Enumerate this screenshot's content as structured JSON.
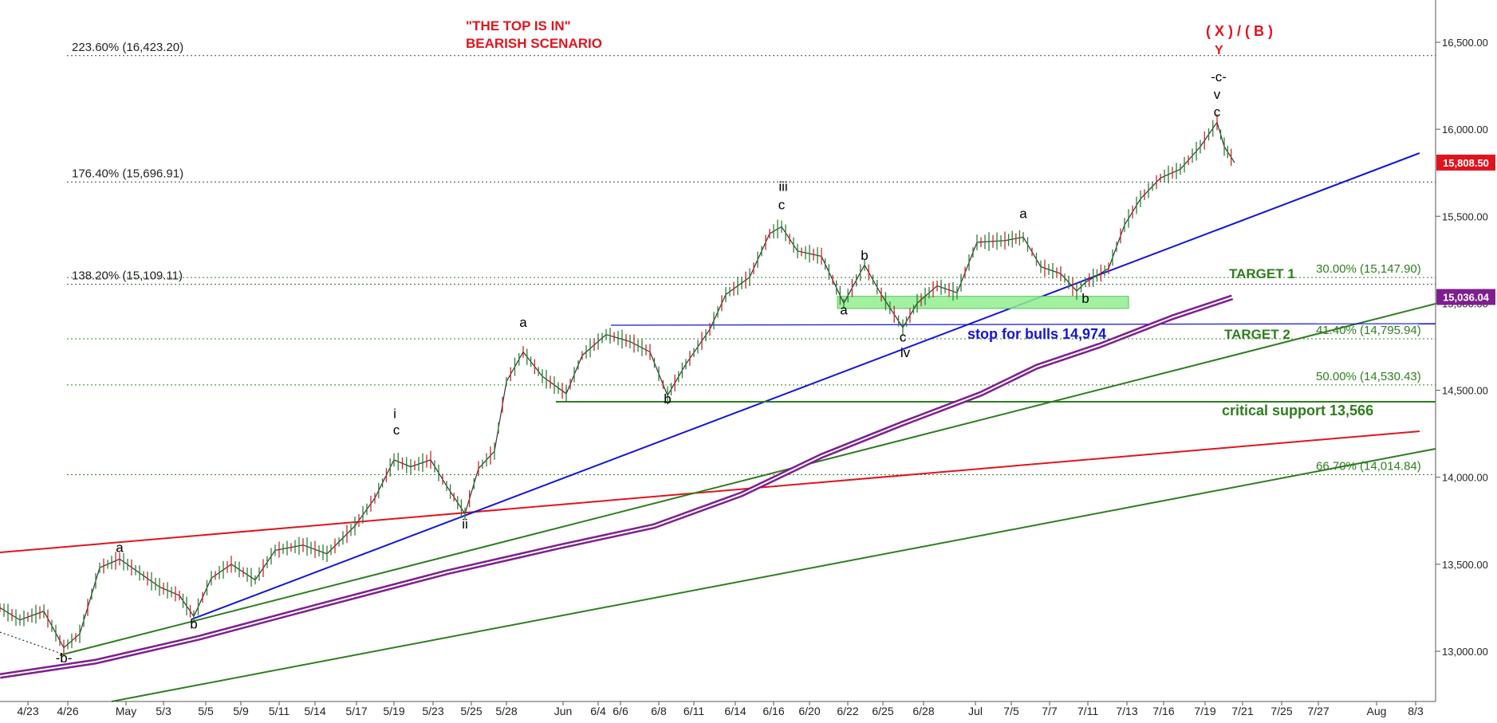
{
  "chart_data": {
    "type": "candlestick",
    "title_lines": [
      "\"THE TOP IS IN\"",
      "BEARISH SCENARIO"
    ],
    "ylim": [
      12750,
      16750
    ],
    "y_ticks": [
      13000,
      13500,
      14000,
      14500,
      15000,
      15500,
      16000,
      16500
    ],
    "y_tick_labels": [
      "13,000.00",
      "13,500.00",
      "14,000.00",
      "14,500.00",
      "15,000.00",
      "15,500.00",
      "16,000.00",
      "16,500.00"
    ],
    "x_tick_labels": [
      "4/23",
      "4/26",
      "May",
      "5/3",
      "5/5",
      "5/9",
      "5/11",
      "5/14",
      "5/17",
      "5/19",
      "5/23",
      "5/25",
      "5/28",
      "Jun",
      "6/4",
      "6/6",
      "6/8",
      "6/11",
      "6/14",
      "6/16",
      "6/20",
      "6/22",
      "6/25",
      "6/28",
      "Jul",
      "7/5",
      "7/7",
      "7/11",
      "7/13",
      "7/16",
      "7/19",
      "7/21",
      "7/25",
      "7/27",
      "Aug",
      "8/3"
    ],
    "x_tick_positions": [
      35,
      85,
      158,
      205,
      258,
      302,
      350,
      395,
      447,
      494,
      543,
      591,
      635,
      706,
      750,
      778,
      826,
      870,
      922,
      970,
      1015,
      1063,
      1107,
      1158,
      1223,
      1268,
      1316,
      1364,
      1413,
      1459,
      1511,
      1558,
      1607,
      1653,
      1726,
      1775
    ],
    "price_badges": [
      {
        "label": "15,808.50",
        "value": 15808.5,
        "color": "#e0141e"
      },
      {
        "label": "15,036.04",
        "value": 15036.04,
        "color": "#7d1f8f"
      }
    ],
    "fib_levels_left": [
      {
        "label": "223.60% (16,423.20)",
        "value": 16423.2
      },
      {
        "label": "176.40% (15,696.91)",
        "value": 15696.91
      },
      {
        "label": "138.20% (15,109.11)",
        "value": 15109.11
      }
    ],
    "fib_levels_right": [
      {
        "label": "30.00% (15,147.90)",
        "value": 15147.9
      },
      {
        "label": "41.40% (14,795.94)",
        "value": 14795.94
      },
      {
        "label": "50.00% (14,530.43)",
        "value": 14530.43
      },
      {
        "label": "66.70% (14,014.84)",
        "value": 14014.84
      }
    ],
    "annotations": {
      "target1": "TARGET 1",
      "target2": "TARGET 2",
      "stop_for_bulls": "stop for bulls 14,974",
      "critical_support": "critical support 13,566",
      "top_label": "( X ) / ( B )",
      "top_y": "Y"
    },
    "wave_labels": [
      {
        "text": "-b-",
        "x": 80,
        "value": 12935,
        "color": "#000000"
      },
      {
        "text": "a",
        "x": 150,
        "value": 13570,
        "color": "#000000"
      },
      {
        "text": "b",
        "x": 243,
        "value": 13130,
        "color": "#000000"
      },
      {
        "text": "i",
        "x": 495,
        "value": 14340,
        "color": "#000000"
      },
      {
        "text": "c",
        "x": 497,
        "value": 14245,
        "color": "#000000"
      },
      {
        "text": "ii",
        "x": 583,
        "value": 13705,
        "color": "#000000"
      },
      {
        "text": "a",
        "x": 656,
        "value": 14865,
        "color": "#000000"
      },
      {
        "text": "b",
        "x": 837,
        "value": 14425,
        "color": "#000000"
      },
      {
        "text": "iii",
        "x": 982,
        "value": 15645,
        "color": "#000000"
      },
      {
        "text": "c",
        "x": 980,
        "value": 15540,
        "color": "#000000"
      },
      {
        "text": "b",
        "x": 1084,
        "value": 15250,
        "color": "#000000"
      },
      {
        "text": "a",
        "x": 1058,
        "value": 14935,
        "color": "#000000"
      },
      {
        "text": "c",
        "x": 1132,
        "value": 14780,
        "color": "#000000"
      },
      {
        "text": "iv",
        "x": 1135,
        "value": 14690,
        "color": "#000000"
      },
      {
        "text": "a",
        "x": 1283,
        "value": 15490,
        "color": "#000000"
      },
      {
        "text": "b",
        "x": 1361,
        "value": 15002,
        "color": "#000000"
      },
      {
        "text": "c",
        "x": 1526,
        "value": 16075,
        "color": "#000000"
      },
      {
        "text": "v",
        "x": 1526,
        "value": 16175,
        "color": "#000000"
      },
      {
        "text": "-c-",
        "x": 1528,
        "value": 16275,
        "color": "#000000"
      }
    ],
    "price_path": [
      {
        "x": 0,
        "value": 13250
      },
      {
        "x": 25,
        "value": 13180
      },
      {
        "x": 55,
        "value": 13230
      },
      {
        "x": 80,
        "value": 13020
      },
      {
        "x": 100,
        "value": 13100
      },
      {
        "x": 125,
        "value": 13480
      },
      {
        "x": 150,
        "value": 13530
      },
      {
        "x": 175,
        "value": 13450
      },
      {
        "x": 200,
        "value": 13370
      },
      {
        "x": 225,
        "value": 13320
      },
      {
        "x": 243,
        "value": 13200
      },
      {
        "x": 265,
        "value": 13420
      },
      {
        "x": 290,
        "value": 13500
      },
      {
        "x": 320,
        "value": 13410
      },
      {
        "x": 345,
        "value": 13580
      },
      {
        "x": 380,
        "value": 13610
      },
      {
        "x": 410,
        "value": 13560
      },
      {
        "x": 445,
        "value": 13720
      },
      {
        "x": 470,
        "value": 13880
      },
      {
        "x": 494,
        "value": 14100
      },
      {
        "x": 515,
        "value": 14060
      },
      {
        "x": 540,
        "value": 14100
      },
      {
        "x": 560,
        "value": 13950
      },
      {
        "x": 583,
        "value": 13790
      },
      {
        "x": 600,
        "value": 14050
      },
      {
        "x": 620,
        "value": 14150
      },
      {
        "x": 635,
        "value": 14550
      },
      {
        "x": 656,
        "value": 14720
      },
      {
        "x": 680,
        "value": 14580
      },
      {
        "x": 710,
        "value": 14480
      },
      {
        "x": 730,
        "value": 14700
      },
      {
        "x": 760,
        "value": 14820
      },
      {
        "x": 790,
        "value": 14780
      },
      {
        "x": 815,
        "value": 14720
      },
      {
        "x": 837,
        "value": 14470
      },
      {
        "x": 860,
        "value": 14650
      },
      {
        "x": 890,
        "value": 14850
      },
      {
        "x": 910,
        "value": 15050
      },
      {
        "x": 940,
        "value": 15150
      },
      {
        "x": 965,
        "value": 15400
      },
      {
        "x": 980,
        "value": 15440
      },
      {
        "x": 1000,
        "value": 15300
      },
      {
        "x": 1030,
        "value": 15270
      },
      {
        "x": 1058,
        "value": 15000
      },
      {
        "x": 1084,
        "value": 15220
      },
      {
        "x": 1105,
        "value": 15050
      },
      {
        "x": 1132,
        "value": 14860
      },
      {
        "x": 1150,
        "value": 15000
      },
      {
        "x": 1175,
        "value": 15100
      },
      {
        "x": 1200,
        "value": 15060
      },
      {
        "x": 1225,
        "value": 15350
      },
      {
        "x": 1260,
        "value": 15360
      },
      {
        "x": 1283,
        "value": 15380
      },
      {
        "x": 1305,
        "value": 15210
      },
      {
        "x": 1330,
        "value": 15170
      },
      {
        "x": 1350,
        "value": 15070
      },
      {
        "x": 1361,
        "value": 15120
      },
      {
        "x": 1390,
        "value": 15200
      },
      {
        "x": 1410,
        "value": 15450
      },
      {
        "x": 1430,
        "value": 15600
      },
      {
        "x": 1455,
        "value": 15720
      },
      {
        "x": 1480,
        "value": 15770
      },
      {
        "x": 1505,
        "value": 15900
      },
      {
        "x": 1526,
        "value": 16040
      },
      {
        "x": 1535,
        "value": 15900
      },
      {
        "x": 1548,
        "value": 15808.5
      }
    ]
  }
}
